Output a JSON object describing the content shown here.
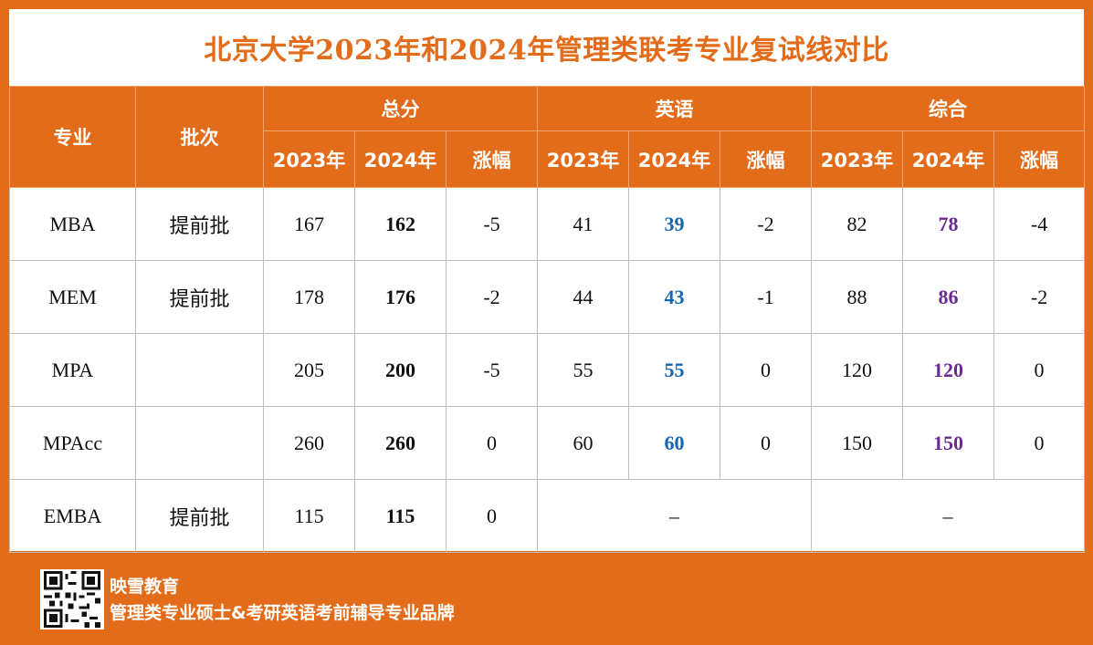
{
  "title": "北京大学2023年和2024年管理类联考专业复试线对比",
  "headers": {
    "major": "专业",
    "batch": "批次",
    "groups": [
      "总分",
      "英语",
      "综合"
    ],
    "sub": [
      "2023年",
      "2024年",
      "涨幅"
    ]
  },
  "rows": [
    {
      "major": "MBA",
      "batch": "提前批",
      "total": [
        "167",
        "162",
        "-5"
      ],
      "english": [
        "41",
        "39",
        "-2"
      ],
      "comprehensive": [
        "82",
        "78",
        "-4"
      ]
    },
    {
      "major": "MEM",
      "batch": "提前批",
      "total": [
        "178",
        "176",
        "-2"
      ],
      "english": [
        "44",
        "43",
        "-1"
      ],
      "comprehensive": [
        "88",
        "86",
        "-2"
      ]
    },
    {
      "major": "MPA",
      "batch": "",
      "total": [
        "205",
        "200",
        "-5"
      ],
      "english": [
        "55",
        "55",
        "0"
      ],
      "comprehensive": [
        "120",
        "120",
        "0"
      ]
    },
    {
      "major": "MPAcc",
      "batch": "",
      "total": [
        "260",
        "260",
        "0"
      ],
      "english": [
        "60",
        "60",
        "0"
      ],
      "comprehensive": [
        "150",
        "150",
        "0"
      ]
    },
    {
      "major": "EMBA",
      "batch": "提前批",
      "total": [
        "115",
        "115",
        "0"
      ],
      "english_dash": "–",
      "comprehensive_dash": "–"
    }
  ],
  "footer": {
    "brand": "映雪教育",
    "slogan": "管理类专业硕士&考研英语考前辅导专业品牌",
    "qr_icon": "qr-code-icon"
  },
  "colors": {
    "accent": "#e36c1a",
    "decrease": "#e00000",
    "english": "#1f77c4",
    "comprehensive": "#7a3ea6"
  }
}
